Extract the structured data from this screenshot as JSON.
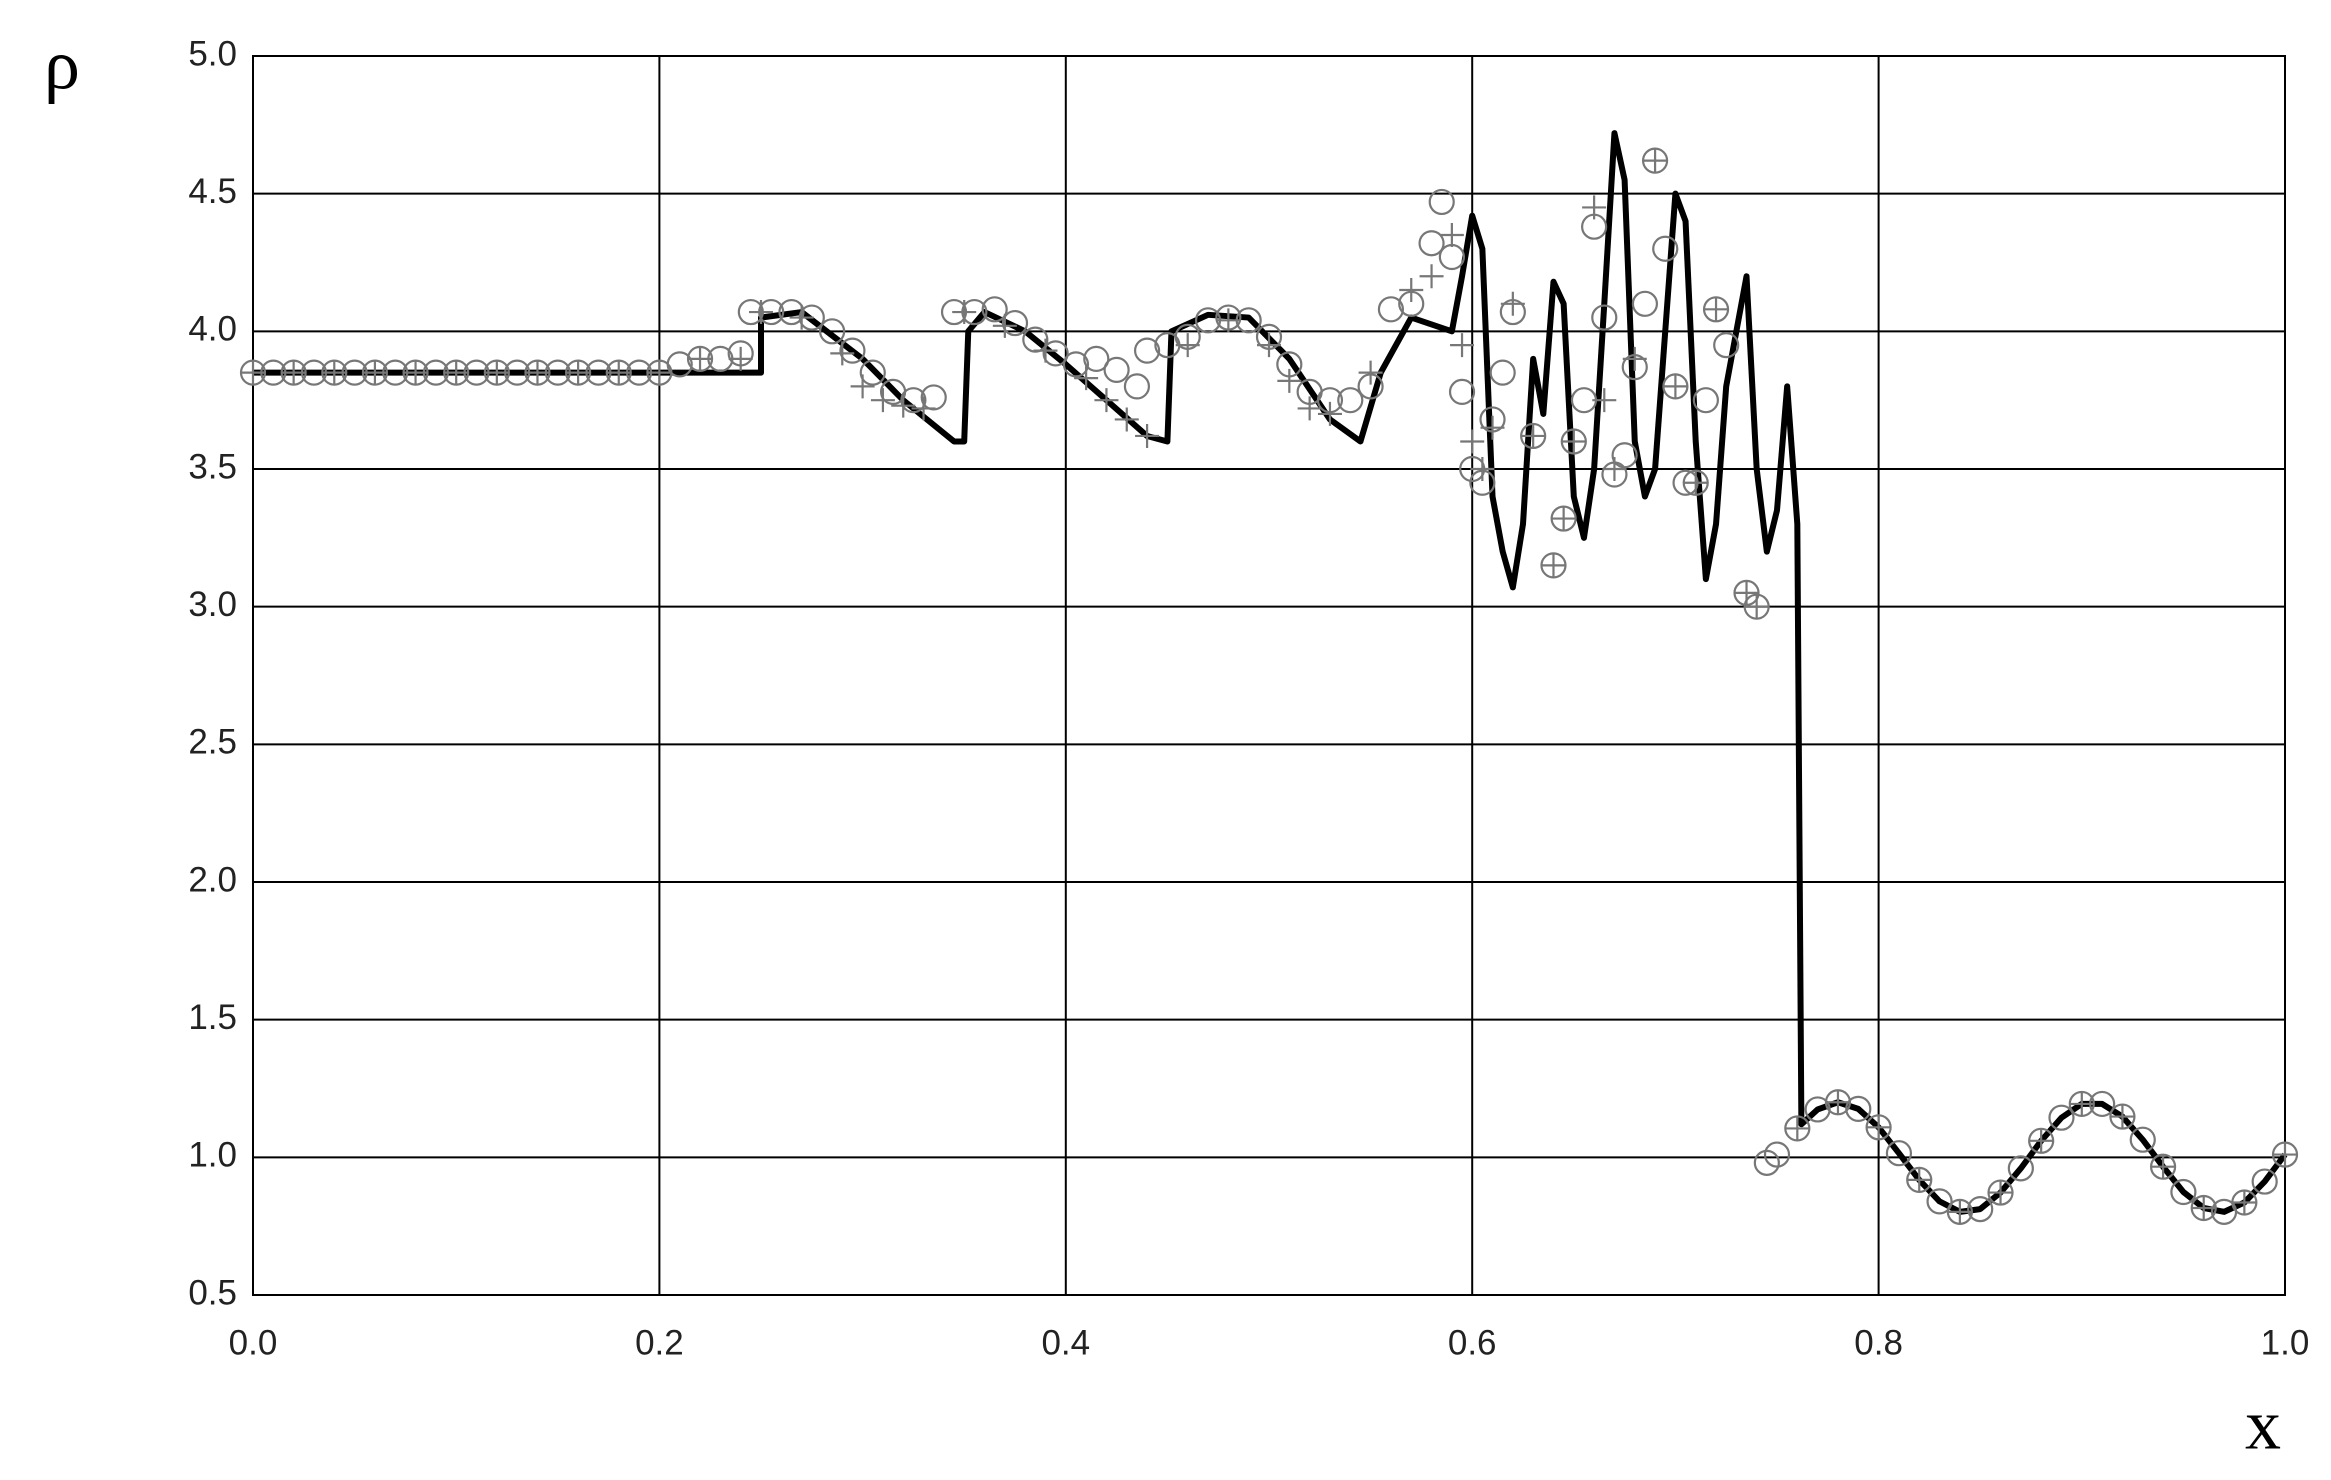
{
  "chart_data": {
    "type": "line",
    "y_label": "ρ",
    "x_label": "x",
    "xlim": [
      0,
      1
    ],
    "ylim": [
      0.5,
      5
    ],
    "xticks": [
      {
        "value": 0,
        "label": "0.0"
      },
      0.2,
      0.4,
      0.6,
      0.8,
      {
        "value": 1,
        "label": "1.0"
      }
    ],
    "yticks": [
      0.5,
      {
        "value": 1,
        "label": "1.0"
      },
      1.5,
      {
        "value": 2,
        "label": "2.0"
      },
      2.5,
      {
        "value": 3,
        "label": "3.0"
      },
      3.5,
      {
        "value": 4,
        "label": "4.0"
      },
      4.5,
      {
        "value": 5,
        "label": "5.0"
      }
    ],
    "grid": true,
    "series": [
      {
        "type": "line",
        "color": "#000000",
        "x": [
          0,
          0.25,
          0.25,
          0.27,
          0.3,
          0.32,
          0.345,
          0.35,
          0.352,
          0.36,
          0.38,
          0.4,
          0.42,
          0.44,
          0.45,
          0.452,
          0.47,
          0.49,
          0.51,
          0.53,
          0.545,
          0.555,
          0.57,
          0.59,
          0.595,
          0.6,
          0.605,
          0.61,
          0.615,
          0.62,
          0.625,
          0.63,
          0.635,
          0.64,
          0.645,
          0.65,
          0.655,
          0.66,
          0.665,
          0.67,
          0.675,
          0.68,
          0.685,
          0.69,
          0.695,
          0.7,
          0.705,
          0.71,
          0.715,
          0.72,
          0.725,
          0.73,
          0.735,
          0.74,
          0.745,
          0.75,
          0.755,
          0.76,
          0.762,
          0.77,
          0.78,
          0.79,
          0.8,
          0.81,
          0.82,
          0.83,
          0.84,
          0.85,
          0.86,
          0.87,
          0.88,
          0.89,
          0.9,
          0.91,
          0.92,
          0.93,
          0.94,
          0.95,
          0.96,
          0.97,
          0.98,
          0.99,
          1
        ],
        "values": [
          3.85,
          3.85,
          4.05,
          4.07,
          3.9,
          3.75,
          3.6,
          3.6,
          4.0,
          4.07,
          4.0,
          3.88,
          3.75,
          3.62,
          3.6,
          4.0,
          4.06,
          4.05,
          3.9,
          3.68,
          3.6,
          3.85,
          4.05,
          4.0,
          4.2,
          4.42,
          4.3,
          3.4,
          3.2,
          3.07,
          3.3,
          3.9,
          3.7,
          4.18,
          4.1,
          3.4,
          3.25,
          3.5,
          4.1,
          4.72,
          4.55,
          3.6,
          3.4,
          3.5,
          4.0,
          4.5,
          4.4,
          3.6,
          3.1,
          3.3,
          3.8,
          4.0,
          4.2,
          3.5,
          3.2,
          3.35,
          3.8,
          3.3,
          1.12,
          1.174,
          1.2,
          1.176,
          1.109,
          1.015,
          0.918,
          0.84,
          0.802,
          0.812,
          0.872,
          0.96,
          1.06,
          1.144,
          1.194,
          1.194,
          1.148,
          1.064,
          0.966,
          0.874,
          0.816,
          0.802,
          0.836,
          0.912,
          1.01
        ]
      },
      {
        "type": "scatter",
        "marker": "circle",
        "color": "#777777",
        "x": [
          0,
          0.01,
          0.02,
          0.03,
          0.04,
          0.05,
          0.06,
          0.07,
          0.08,
          0.09,
          0.1,
          0.11,
          0.12,
          0.13,
          0.14,
          0.15,
          0.16,
          0.17,
          0.18,
          0.19,
          0.2,
          0.21,
          0.22,
          0.23,
          0.24,
          0.245,
          0.255,
          0.265,
          0.275,
          0.285,
          0.295,
          0.305,
          0.315,
          0.325,
          0.335,
          0.345,
          0.355,
          0.365,
          0.375,
          0.385,
          0.395,
          0.405,
          0.415,
          0.425,
          0.435,
          0.44,
          0.45,
          0.46,
          0.47,
          0.48,
          0.49,
          0.5,
          0.51,
          0.52,
          0.53,
          0.54,
          0.55,
          0.56,
          0.57,
          0.58,
          0.585,
          0.59,
          0.595,
          0.6,
          0.605,
          0.61,
          0.615,
          0.62,
          0.63,
          0.64,
          0.645,
          0.65,
          0.655,
          0.66,
          0.665,
          0.67,
          0.675,
          0.68,
          0.685,
          0.69,
          0.695,
          0.7,
          0.705,
          0.71,
          0.715,
          0.72,
          0.725,
          0.735,
          0.74,
          0.745,
          0.75,
          0.76,
          0.77,
          0.78,
          0.79,
          0.8,
          0.81,
          0.82,
          0.83,
          0.84,
          0.85,
          0.86,
          0.87,
          0.88,
          0.89,
          0.9,
          0.91,
          0.92,
          0.93,
          0.94,
          0.95,
          0.96,
          0.97,
          0.98,
          0.99,
          1
        ],
        "values": [
          3.85,
          3.85,
          3.85,
          3.85,
          3.85,
          3.85,
          3.85,
          3.85,
          3.85,
          3.85,
          3.85,
          3.85,
          3.85,
          3.85,
          3.85,
          3.85,
          3.85,
          3.85,
          3.85,
          3.85,
          3.85,
          3.88,
          3.9,
          3.9,
          3.92,
          4.07,
          4.07,
          4.07,
          4.05,
          4.0,
          3.93,
          3.85,
          3.78,
          3.75,
          3.76,
          4.07,
          4.07,
          4.08,
          4.03,
          3.97,
          3.92,
          3.88,
          3.9,
          3.86,
          3.8,
          3.93,
          3.95,
          3.98,
          4.04,
          4.05,
          4.04,
          3.98,
          3.88,
          3.78,
          3.75,
          3.75,
          3.8,
          4.08,
          4.1,
          4.32,
          4.47,
          4.27,
          3.78,
          3.5,
          3.45,
          3.68,
          3.85,
          4.07,
          3.62,
          3.15,
          3.32,
          3.6,
          3.75,
          4.38,
          4.05,
          3.48,
          3.55,
          3.87,
          4.1,
          4.62,
          4.3,
          3.8,
          3.45,
          3.45,
          3.75,
          4.08,
          3.95,
          3.05,
          3.0,
          0.98,
          1.01,
          1.105,
          1.174,
          1.2,
          1.176,
          1.109,
          1.015,
          0.918,
          0.84,
          0.802,
          0.812,
          0.872,
          0.96,
          1.06,
          1.144,
          1.194,
          1.194,
          1.148,
          1.064,
          0.966,
          0.874,
          0.816,
          0.802,
          0.836,
          0.912,
          1.01
        ]
      },
      {
        "type": "scatter",
        "marker": "plus",
        "color": "#777777",
        "x": [
          0,
          0.02,
          0.04,
          0.06,
          0.08,
          0.1,
          0.12,
          0.14,
          0.16,
          0.18,
          0.2,
          0.22,
          0.24,
          0.25,
          0.27,
          0.29,
          0.3,
          0.31,
          0.32,
          0.33,
          0.35,
          0.37,
          0.39,
          0.41,
          0.42,
          0.43,
          0.44,
          0.46,
          0.48,
          0.5,
          0.51,
          0.52,
          0.53,
          0.55,
          0.57,
          0.58,
          0.59,
          0.595,
          0.6,
          0.605,
          0.61,
          0.62,
          0.63,
          0.64,
          0.645,
          0.65,
          0.66,
          0.665,
          0.67,
          0.68,
          0.69,
          0.7,
          0.71,
          0.72,
          0.735,
          0.74,
          0.76,
          0.78,
          0.8,
          0.82,
          0.84,
          0.86,
          0.88,
          0.9,
          0.92,
          0.94,
          0.96,
          0.98,
          1
        ],
        "values": [
          3.85,
          3.85,
          3.85,
          3.85,
          3.85,
          3.85,
          3.85,
          3.85,
          3.85,
          3.85,
          3.85,
          3.9,
          3.9,
          4.07,
          4.05,
          3.92,
          3.8,
          3.75,
          3.73,
          3.72,
          4.07,
          4.02,
          3.93,
          3.83,
          3.75,
          3.68,
          3.62,
          3.95,
          4.04,
          3.95,
          3.82,
          3.72,
          3.7,
          3.85,
          4.15,
          4.2,
          4.35,
          3.95,
          3.6,
          3.5,
          3.65,
          4.1,
          3.62,
          3.15,
          3.32,
          3.6,
          4.45,
          3.75,
          3.5,
          3.9,
          4.62,
          3.8,
          3.45,
          4.08,
          3.05,
          3.0,
          1.105,
          1.2,
          1.109,
          0.918,
          0.802,
          0.872,
          1.06,
          1.194,
          1.148,
          0.966,
          0.816,
          0.836,
          1.01
        ]
      }
    ]
  }
}
